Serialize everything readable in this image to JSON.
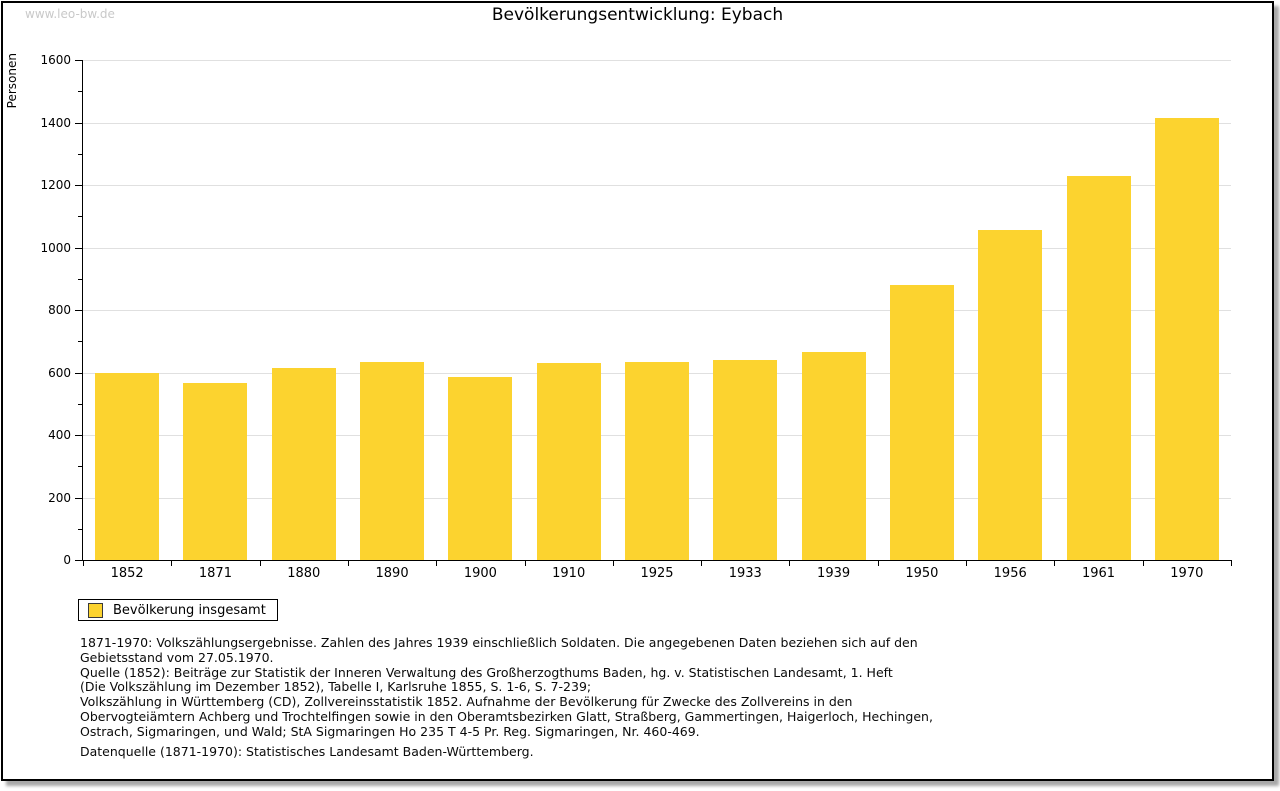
{
  "watermark": "www.leo-bw.de",
  "title": "Bevölkerungsentwicklung: Eybach",
  "chart_data": {
    "type": "bar",
    "title": "Bevölkerungsentwicklung: Eybach",
    "categories": [
      "1852",
      "1871",
      "1880",
      "1890",
      "1900",
      "1910",
      "1925",
      "1933",
      "1939",
      "1950",
      "1956",
      "1961",
      "1970"
    ],
    "values": [
      600,
      565,
      615,
      635,
      585,
      630,
      635,
      640,
      665,
      880,
      1055,
      1230,
      1415
    ],
    "series_name": "Bevölkerung insgesamt",
    "xlabel": "",
    "ylabel": "Personen",
    "ylim": [
      0,
      1600
    ],
    "ytick_step": 200,
    "ytick_minor_step": 100,
    "grid": "horizontal-major",
    "legend_position": "bottom-left",
    "bar_color": "#FCD32F",
    "grid_color": "#E0E0E0",
    "axis_color": "#000000"
  },
  "legend": {
    "label": "Bevölkerung insgesamt"
  },
  "footer": {
    "notes": [
      "1871-1970: Volkszählungsergebnisse. Zahlen des Jahres 1939 einschließlich Soldaten. Die angegebenen Daten beziehen sich auf den",
      "Gebietsstand vom 27.05.1970.",
      "Quelle (1852): Beiträge zur Statistik der Inneren Verwaltung des Großherzogthums Baden, hg. v. Statistischen Landesamt, 1. Heft",
      "(Die Volkszählung im Dezember 1852), Tabelle I, Karlsruhe 1855, S. 1-6, S. 7-239;",
      "Volkszählung in Württemberg (CD), Zollvereinsstatistik 1852. Aufnahme der Bevölkerung für Zwecke des Zollvereins in den",
      "Obervogteiämtern Achberg und Trochtelfingen sowie in den Oberamtsbezirken Glatt, Straßberg, Gammertingen, Haigerloch, Hechingen,",
      "Ostrach, Sigmaringen, und Wald; StA Sigmaringen Ho 235 T 4-5 Pr. Reg. Sigmaringen, Nr. 460-469."
    ],
    "datasource": "Datenquelle (1871-1970): Statistisches Landesamt Baden-Württemberg."
  }
}
